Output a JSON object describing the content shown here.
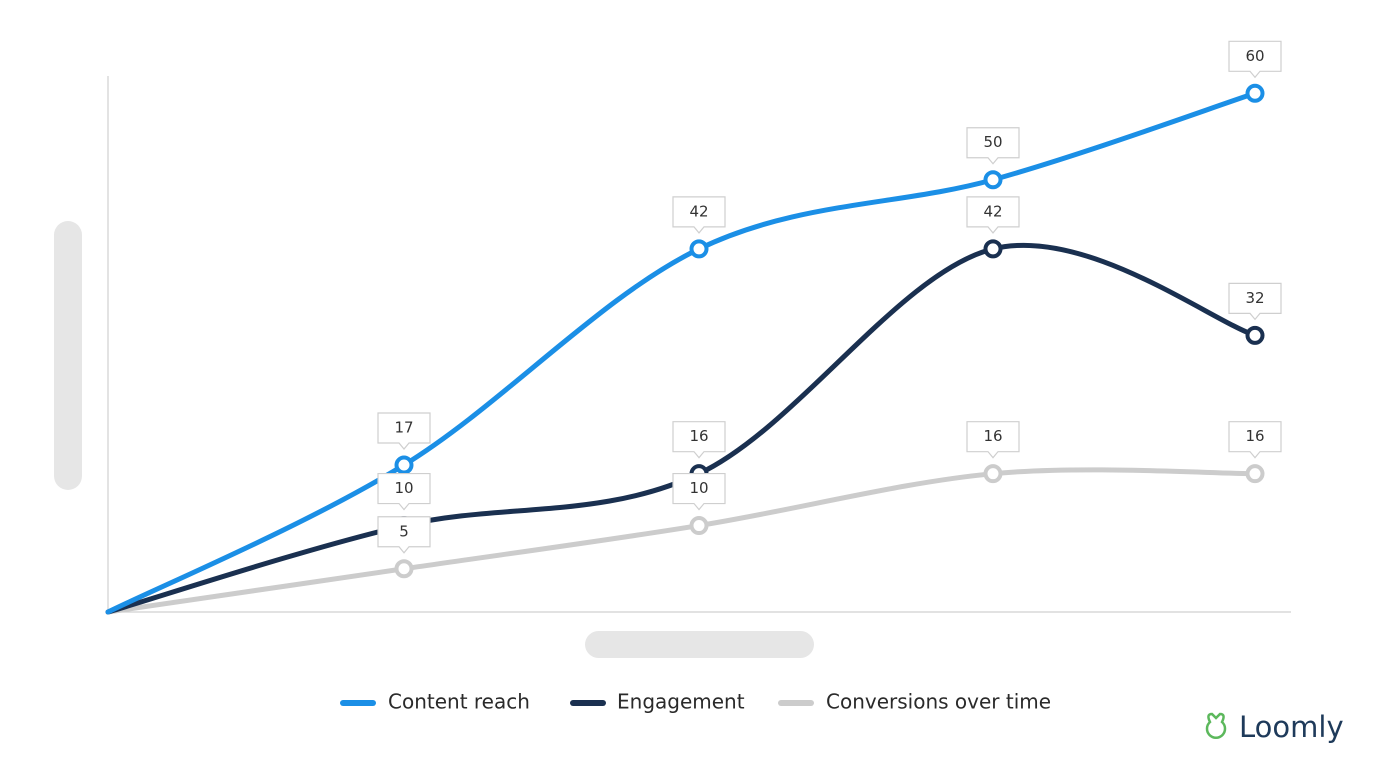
{
  "chart_data": {
    "type": "line",
    "categories": [
      null,
      null,
      null,
      null,
      null
    ],
    "series": [
      {
        "name": "Content reach",
        "color": "#1b8fe6",
        "values": [
          0,
          17,
          42,
          50,
          60
        ]
      },
      {
        "name": "Engagement",
        "color": "#1a3050",
        "values": [
          0,
          10,
          16,
          42,
          32
        ]
      },
      {
        "name": "Conversions over time",
        "color": "#cccccc",
        "values": [
          0,
          5,
          10,
          16,
          16
        ]
      }
    ],
    "ylim": [
      0,
      62
    ]
  },
  "brand": {
    "name": "Loomly"
  }
}
